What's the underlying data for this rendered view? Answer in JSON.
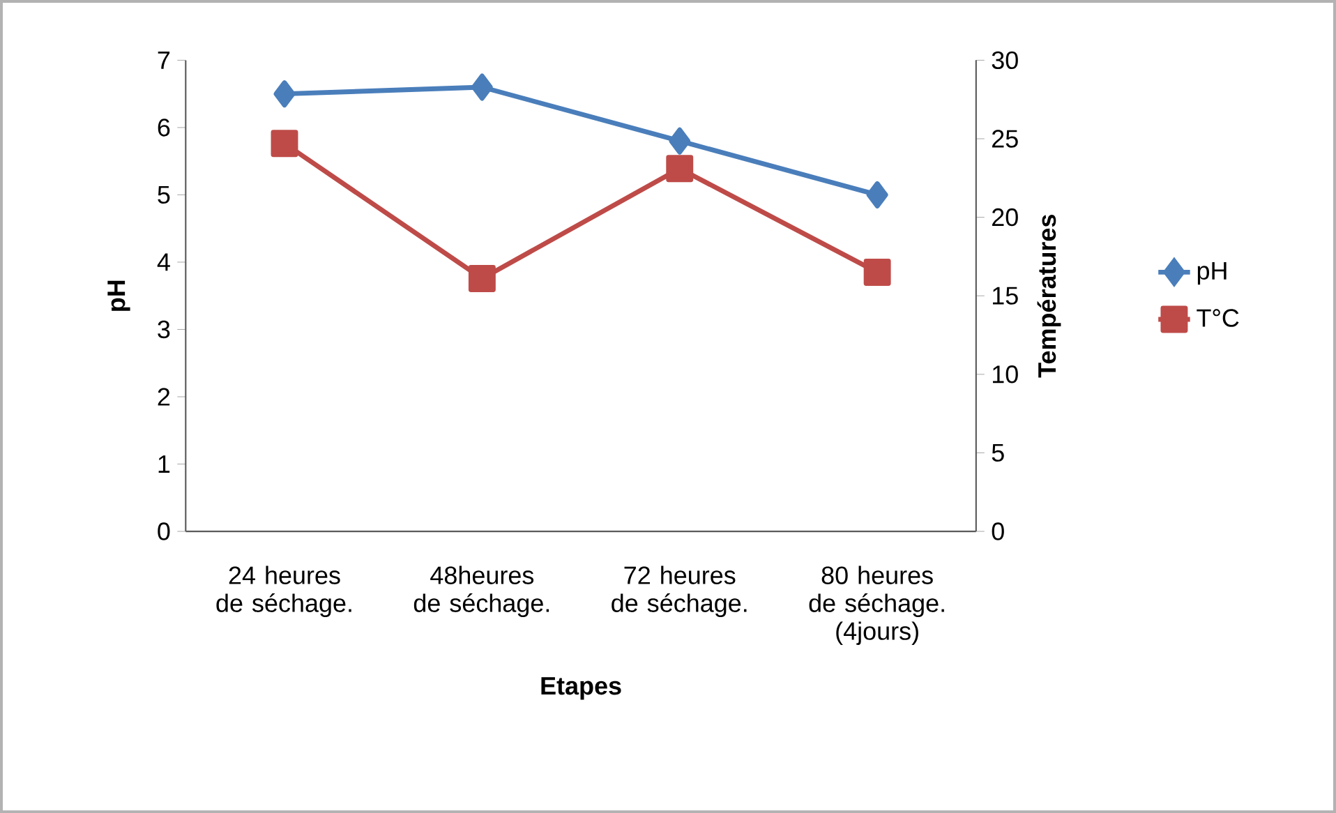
{
  "chart_data": {
    "type": "line",
    "xlabel": "Etapes",
    "ylabel": "pH",
    "y2label": "Températures",
    "categories": [
      "24 heures de séchage.",
      "48heures de séchage.",
      "72 heures de séchage.",
      "80 heures de séchage. (4jours)"
    ],
    "series": [
      {
        "name": "pH",
        "color": "#4a7ebb",
        "marker": "diamond",
        "values": [
          6.5,
          6.6,
          5.8,
          5.0
        ]
      },
      {
        "name": "T°C",
        "color": "#be4b48",
        "marker": "square",
        "axis": "y2",
        "values": [
          24.7,
          16.1,
          23.1,
          16.5
        ]
      }
    ],
    "ylim": [
      0,
      7
    ],
    "yticks": [
      0,
      1,
      2,
      3,
      4,
      5,
      6,
      7
    ],
    "y2lim": [
      0,
      30
    ],
    "y2ticks": [
      0,
      5,
      10,
      15,
      20,
      25,
      30
    ],
    "legend": "right",
    "grid": false
  }
}
